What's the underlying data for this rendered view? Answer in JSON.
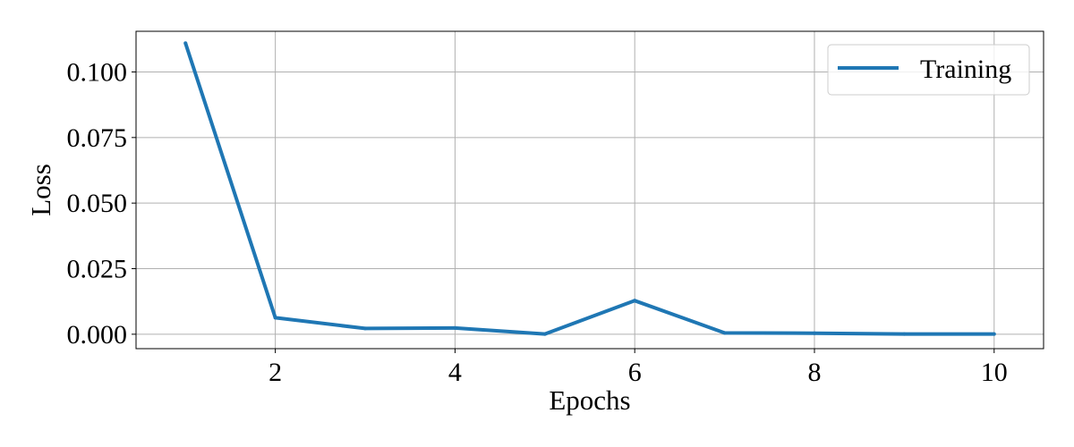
{
  "chart_data": {
    "type": "line",
    "title": "",
    "xlabel": "Epochs",
    "ylabel": "Loss",
    "xlim": [
      0.45,
      10.55
    ],
    "ylim": [
      -0.0055,
      0.1155
    ],
    "xticks": [
      2,
      4,
      6,
      8,
      10
    ],
    "xtick_labels": [
      "2",
      "4",
      "6",
      "8",
      "10"
    ],
    "yticks": [
      0.0,
      0.025,
      0.05,
      0.075,
      0.1
    ],
    "ytick_labels": [
      "0.000",
      "0.025",
      "0.050",
      "0.075",
      "0.100"
    ],
    "grid": true,
    "legend_position": "top-right",
    "x": [
      1,
      2,
      3,
      4,
      5,
      6,
      7,
      8,
      9,
      10
    ],
    "series": [
      {
        "name": "Training",
        "color": "#1f77b4",
        "values": [
          0.111,
          0.0063,
          0.0022,
          0.0024,
          0.0001,
          0.0128,
          0.0005,
          0.0004,
          0.0001,
          0.0001
        ]
      }
    ]
  }
}
